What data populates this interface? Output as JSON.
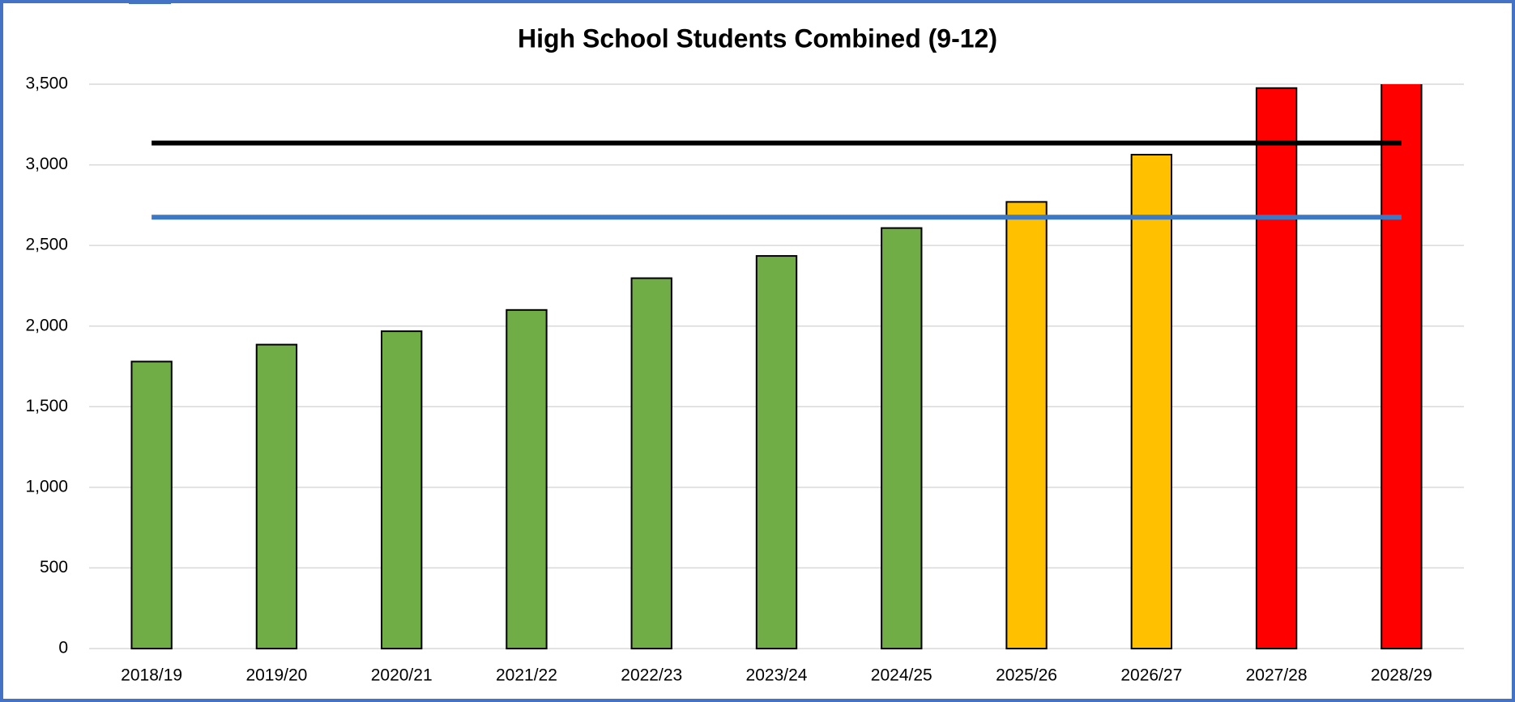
{
  "chart_data": {
    "type": "bar",
    "title": "High School Students Combined (9-12)",
    "categories": [
      "2018/19",
      "2019/20",
      "2020/21",
      "2021/22",
      "2022/23",
      "2023/24",
      "2024/25",
      "2025/26",
      "2026/27",
      "2027/28",
      "2028/29"
    ],
    "values": [
      1780,
      1885,
      1968,
      2100,
      2297,
      2435,
      2608,
      2770,
      3063,
      3476,
      3550
    ],
    "colors": [
      "#70ad47",
      "#70ad47",
      "#70ad47",
      "#70ad47",
      "#70ad47",
      "#70ad47",
      "#70ad47",
      "#ffc000",
      "#ffc000",
      "#ff0000",
      "#ff0000"
    ],
    "lines": [
      {
        "color": "#000000",
        "values": [
          3135,
          3135,
          3135,
          3135,
          3135,
          3135,
          3135,
          3135,
          3135,
          3135,
          3135
        ]
      },
      {
        "color": "#3c78c3",
        "values": [
          2675,
          2675,
          2675,
          2675,
          2675,
          2675,
          2675,
          2675,
          2675,
          2675,
          2675
        ]
      }
    ],
    "ylim": [
      0,
      3500
    ],
    "yticks": [
      0,
      500,
      {
        "value": 1000,
        "label": "1,000"
      },
      {
        "value": 1500,
        "label": "1,500"
      },
      {
        "value": 2000,
        "label": "2,000"
      },
      {
        "value": 2500,
        "label": "2,500"
      },
      {
        "value": 3000,
        "label": "3,000"
      },
      {
        "value": 3500,
        "label": "3,500"
      }
    ],
    "grid": true
  }
}
